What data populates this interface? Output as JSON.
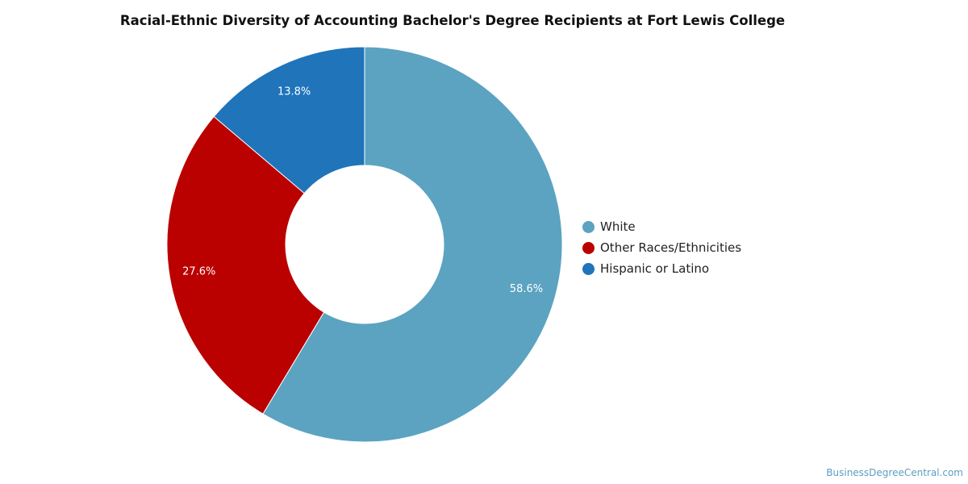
{
  "chart_data": {
    "type": "pie",
    "variant": "donut",
    "title": "Racial-Ethnic Diversity of Accounting Bachelor's Degree Recipients at Fort Lewis College",
    "slices": [
      {
        "label": "White",
        "value": 58.6,
        "display": "58.6%",
        "color": "#5ba3c1"
      },
      {
        "label": "Other Races/Ethnicities",
        "value": 27.6,
        "display": "27.6%",
        "color": "#bb0000"
      },
      {
        "label": "Hispanic or Latino",
        "value": 13.8,
        "display": "13.8%",
        "color": "#1f74ba"
      }
    ],
    "legend_position": "right"
  },
  "source": "BusinessDegreeCentral.com"
}
